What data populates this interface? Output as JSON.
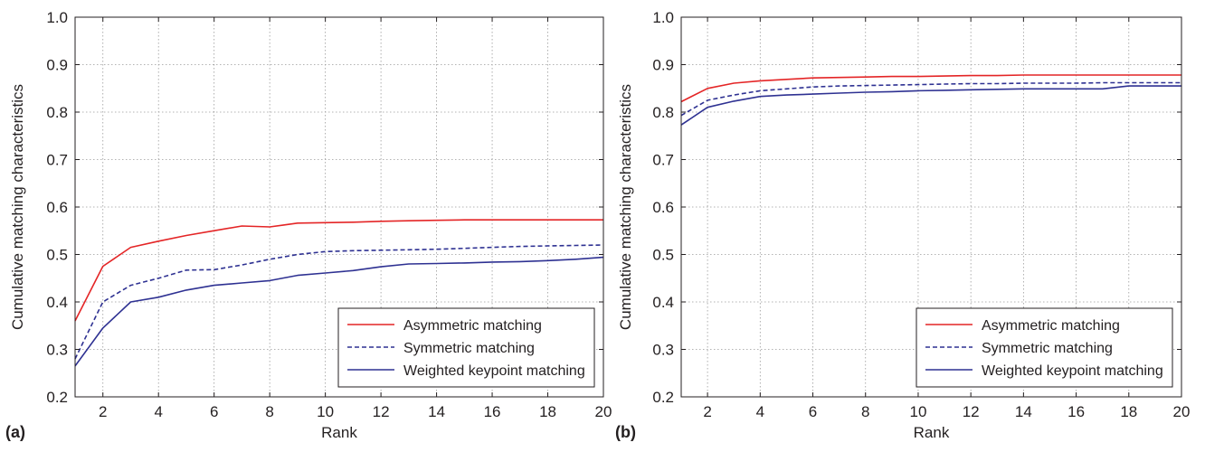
{
  "chart_data": [
    {
      "type": "line",
      "panel_label": "(a)",
      "xlabel": "Rank",
      "ylabel": "Cumulative matching characteristics",
      "xlim": [
        1,
        20
      ],
      "ylim": [
        0.2,
        1.0
      ],
      "xticks": [
        "2",
        "4",
        "6",
        "8",
        "10",
        "12",
        "14",
        "16",
        "18",
        "20"
      ],
      "yticks": [
        "0.2",
        "0.3",
        "0.4",
        "0.5",
        "0.6",
        "0.7",
        "0.8",
        "0.9",
        "1.0"
      ],
      "grid": true,
      "legend_position": "bottom-right",
      "series": [
        {
          "name": "Asymmetric matching",
          "color": "#e42526",
          "style": "solid",
          "x": [
            1,
            2,
            3,
            4,
            5,
            6,
            7,
            8,
            8.5,
            9,
            10,
            11,
            12,
            13,
            14,
            15,
            16,
            17,
            18,
            19,
            20
          ],
          "y": [
            0.36,
            0.475,
            0.515,
            0.528,
            0.54,
            0.55,
            0.56,
            0.558,
            0.562,
            0.566,
            0.567,
            0.568,
            0.57,
            0.571,
            0.572,
            0.573,
            0.573,
            0.573,
            0.573,
            0.573,
            0.573
          ]
        },
        {
          "name": "Symmetric matching",
          "color": "#2e3192",
          "style": "dashed",
          "x": [
            1,
            2,
            3,
            4,
            5,
            6,
            7,
            8,
            9,
            10,
            11,
            12,
            13,
            14,
            15,
            16,
            17,
            18,
            19,
            20
          ],
          "y": [
            0.28,
            0.4,
            0.435,
            0.45,
            0.467,
            0.468,
            0.478,
            0.49,
            0.5,
            0.506,
            0.508,
            0.509,
            0.51,
            0.511,
            0.513,
            0.515,
            0.517,
            0.518,
            0.519,
            0.52
          ]
        },
        {
          "name": "Weighted keypoint matching",
          "color": "#2e3192",
          "style": "solid",
          "x": [
            1,
            2,
            3,
            4,
            5,
            6,
            7,
            8,
            9,
            10,
            11,
            12,
            13,
            14,
            15,
            16,
            17,
            18,
            19,
            20
          ],
          "y": [
            0.265,
            0.345,
            0.4,
            0.41,
            0.425,
            0.435,
            0.44,
            0.445,
            0.456,
            0.461,
            0.466,
            0.474,
            0.48,
            0.481,
            0.482,
            0.484,
            0.485,
            0.487,
            0.49,
            0.494
          ]
        }
      ]
    },
    {
      "type": "line",
      "panel_label": "(b)",
      "xlabel": "Rank",
      "ylabel": "Cumulative matching characteristics",
      "xlim": [
        1,
        20
      ],
      "ylim": [
        0.2,
        1.0
      ],
      "xticks": [
        "2",
        "4",
        "6",
        "8",
        "10",
        "12",
        "14",
        "16",
        "18",
        "20"
      ],
      "yticks": [
        "0.2",
        "0.3",
        "0.4",
        "0.5",
        "0.6",
        "0.7",
        "0.8",
        "0.9",
        "1.0"
      ],
      "grid": true,
      "legend_position": "bottom-right",
      "series": [
        {
          "name": "Asymmetric matching",
          "color": "#e42526",
          "style": "solid",
          "x": [
            1,
            2,
            3,
            4,
            5,
            6,
            7,
            8,
            9,
            10,
            11,
            12,
            13,
            14,
            15,
            16,
            17,
            18,
            19,
            20
          ],
          "y": [
            0.822,
            0.85,
            0.861,
            0.866,
            0.869,
            0.872,
            0.873,
            0.874,
            0.875,
            0.875,
            0.876,
            0.877,
            0.877,
            0.878,
            0.878,
            0.878,
            0.878,
            0.878,
            0.878,
            0.878
          ]
        },
        {
          "name": "Symmetric matching",
          "color": "#2e3192",
          "style": "dashed",
          "x": [
            1,
            2,
            3,
            4,
            5,
            6,
            7,
            8,
            9,
            10,
            11,
            12,
            13,
            14,
            15,
            16,
            17,
            18,
            19,
            20
          ],
          "y": [
            0.793,
            0.825,
            0.836,
            0.845,
            0.849,
            0.853,
            0.855,
            0.856,
            0.857,
            0.858,
            0.859,
            0.86,
            0.86,
            0.861,
            0.861,
            0.861,
            0.862,
            0.862,
            0.862,
            0.862
          ]
        },
        {
          "name": "Weighted keypoint matching",
          "color": "#2e3192",
          "style": "solid",
          "x": [
            1,
            2,
            3,
            4,
            5,
            6,
            7,
            8,
            9,
            10,
            11,
            12,
            13,
            14,
            15,
            16,
            17,
            17.5,
            18,
            19,
            20
          ],
          "y": [
            0.773,
            0.81,
            0.823,
            0.833,
            0.836,
            0.838,
            0.84,
            0.842,
            0.843,
            0.845,
            0.846,
            0.847,
            0.848,
            0.849,
            0.849,
            0.849,
            0.849,
            0.852,
            0.855,
            0.855,
            0.855
          ]
        }
      ]
    }
  ]
}
